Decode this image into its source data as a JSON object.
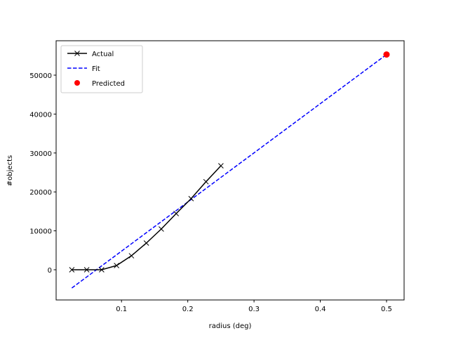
{
  "chart_data": {
    "type": "line",
    "title": "",
    "xlabel": "radius (deg)",
    "ylabel": "#objects",
    "xlim": [
      0.0013,
      0.5265
    ],
    "ylim": [
      -7760,
      58840
    ],
    "xticks": [
      0.1,
      0.2,
      0.3,
      0.4,
      0.5
    ],
    "xtick_labels": [
      "0.1",
      "0.2",
      "0.3",
      "0.4",
      "0.5"
    ],
    "yticks": [
      0,
      10000,
      20000,
      30000,
      40000,
      50000
    ],
    "ytick_labels": [
      "0",
      "10000",
      "20000",
      "30000",
      "40000",
      "50000"
    ],
    "grid": false,
    "legend_position": "top-left",
    "series": [
      {
        "name": "Actual",
        "style": "line-x-marker",
        "color": "#000000",
        "x": [
          0.025,
          0.0475,
          0.07,
          0.0925,
          0.115,
          0.1375,
          0.16,
          0.1825,
          0.205,
          0.2275,
          0.25
        ],
        "y": [
          0,
          0,
          0,
          1080,
          3600,
          6860,
          10470,
          14440,
          18280,
          22620,
          26710
        ]
      },
      {
        "name": "Fit",
        "style": "dashed",
        "color": "#0000ff",
        "x": [
          0.025,
          0.5
        ],
        "y": [
          -4690,
          55300
        ]
      },
      {
        "name": "Predicted",
        "style": "scatter",
        "color": "#ff0000",
        "x": [
          0.5
        ],
        "y": [
          55300
        ]
      }
    ]
  }
}
